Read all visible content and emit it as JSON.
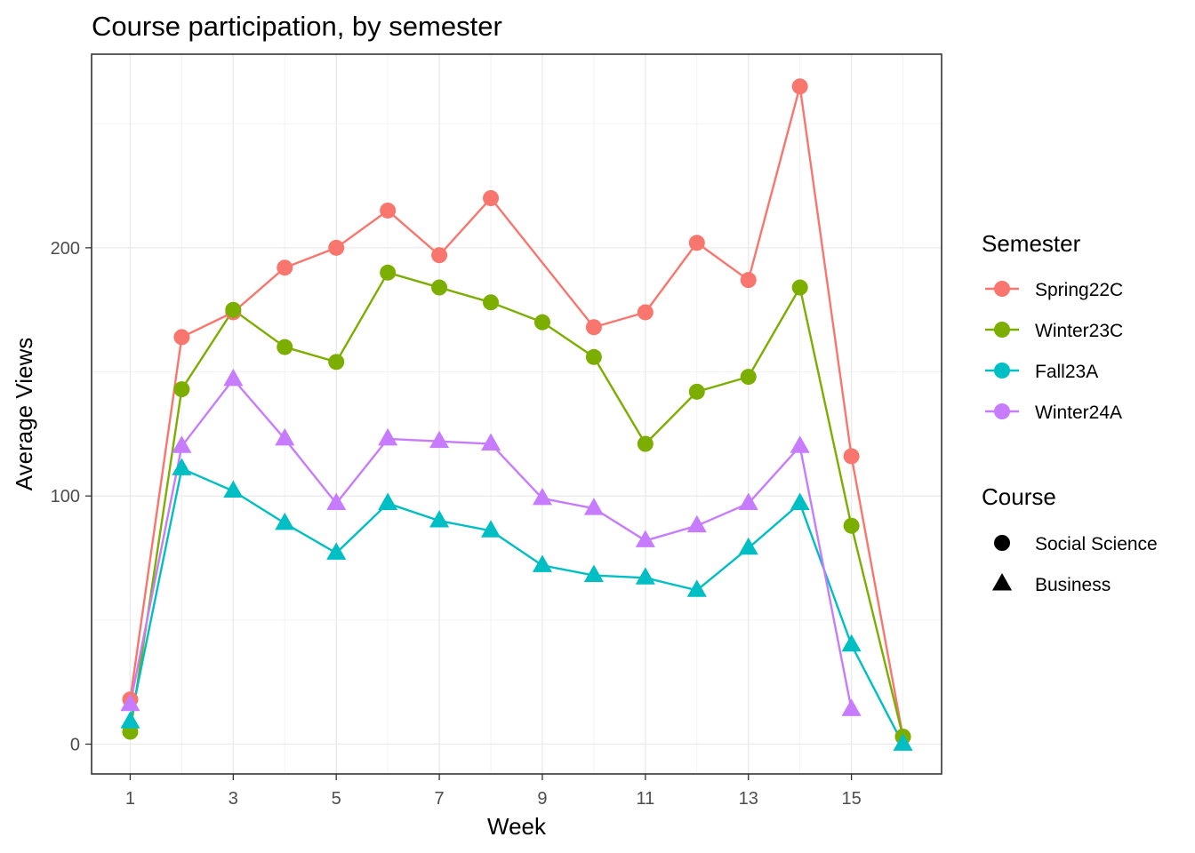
{
  "chart_data": {
    "type": "line",
    "title": "Course participation, by semester",
    "xlabel": "Week",
    "ylabel": "Average Views",
    "x": [
      1,
      2,
      3,
      4,
      5,
      6,
      7,
      8,
      9,
      10,
      11,
      12,
      13,
      14,
      15,
      16
    ],
    "xlim": [
      0.25,
      16.75
    ],
    "ylim": [
      -12,
      278
    ],
    "x_ticks": [
      1,
      3,
      5,
      7,
      9,
      11,
      13,
      15
    ],
    "x_tick_labels": [
      "1",
      "3",
      "5",
      "7",
      "9",
      "11",
      "13",
      "15"
    ],
    "x_minor_ticks": [
      2,
      4,
      6,
      8,
      10,
      12,
      14,
      16
    ],
    "y_ticks": [
      0,
      100,
      200
    ],
    "y_tick_labels": [
      "0",
      "100",
      "200"
    ],
    "y_minor_ticks": [
      50,
      150,
      250
    ],
    "grid": true,
    "legend_position": "right",
    "color_legend": {
      "title": "Semester",
      "entries": [
        {
          "label": "Spring22C",
          "color": "#F8766D"
        },
        {
          "label": "Winter23C",
          "color": "#7CAE00"
        },
        {
          "label": "Fall23A",
          "color": "#00BFC4"
        },
        {
          "label": "Winter24A",
          "color": "#C77CFF"
        }
      ]
    },
    "shape_legend": {
      "title": "Course",
      "entries": [
        {
          "label": "Social Science",
          "shape": "circle"
        },
        {
          "label": "Business",
          "shape": "triangle"
        }
      ]
    },
    "series": [
      {
        "name": "Spring22C",
        "color": "#F8766D",
        "shape": "circle",
        "values": [
          18,
          164,
          174,
          192,
          200,
          215,
          197,
          220,
          null,
          168,
          174,
          202,
          187,
          265,
          116,
          3
        ]
      },
      {
        "name": "Winter23C",
        "color": "#7CAE00",
        "shape": "circle",
        "values": [
          5,
          143,
          175,
          160,
          154,
          190,
          184,
          178,
          170,
          156,
          121,
          142,
          148,
          184,
          88,
          3
        ]
      },
      {
        "name": "Fall23A",
        "color": "#00BFC4",
        "shape": "triangle",
        "values": [
          9,
          111,
          102,
          89,
          77,
          97,
          90,
          86,
          72,
          68,
          67,
          62,
          79,
          97,
          40,
          0
        ]
      },
      {
        "name": "Winter24A",
        "color": "#C77CFF",
        "shape": "triangle",
        "values": [
          16,
          120,
          147,
          123,
          97,
          123,
          122,
          121,
          99,
          95,
          82,
          88,
          97,
          120,
          14,
          null
        ]
      }
    ]
  }
}
